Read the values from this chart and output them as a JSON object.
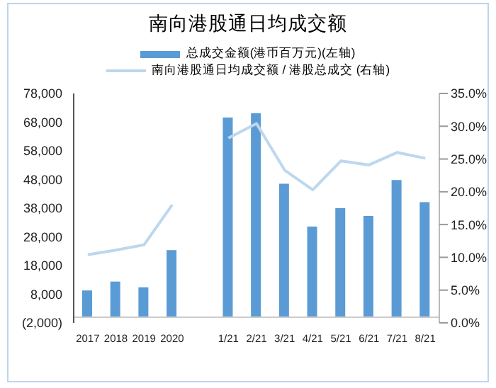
{
  "chart_data": {
    "type": "bar",
    "title": "南向港股通日均成交额",
    "categories": [
      "2017",
      "2018",
      "2019",
      "2020",
      null,
      "1/21",
      "2/21",
      "3/21",
      "4/21",
      "5/21",
      "6/21",
      "7/21",
      "8/21"
    ],
    "series": [
      {
        "name": "总成交金额(港币百万元)(左轴)",
        "color": "#5b9bd5",
        "values": [
          9300,
          12400,
          10400,
          23400,
          null,
          69600,
          71100,
          46500,
          31600,
          38000,
          35300,
          47800,
          40100
        ]
      },
      {
        "name": "南向港股通日均成交额 / 港股总成交 (右轴)",
        "type": "line",
        "axis": "y2",
        "color": "#bdd7ee",
        "values": [
          10.4,
          11.1,
          11.9,
          18.0,
          null,
          28.2,
          30.4,
          23.3,
          20.3,
          24.7,
          24.1,
          26.0,
          25.1
        ]
      }
    ],
    "ylim": [
      -2000,
      78000
    ],
    "yticks": [
      {
        "value": -2000,
        "label": "(2,000)"
      },
      {
        "value": 8000,
        "label": "8,000"
      },
      {
        "value": 18000,
        "label": "18,000"
      },
      {
        "value": 28000,
        "label": "28,000"
      },
      {
        "value": 38000,
        "label": "38,000"
      },
      {
        "value": 48000,
        "label": "48,000"
      },
      {
        "value": 58000,
        "label": "58,000"
      },
      {
        "value": 68000,
        "label": "68,000"
      },
      {
        "value": 78000,
        "label": "78,000"
      }
    ],
    "y2lim": [
      0,
      35
    ],
    "y2ticks": [
      {
        "value": 0,
        "label": "0.0%"
      },
      {
        "value": 5,
        "label": "5.0%"
      },
      {
        "value": 10,
        "label": "10.0%"
      },
      {
        "value": 15,
        "label": "15.0%"
      },
      {
        "value": 20,
        "label": "20.0%"
      },
      {
        "value": 25,
        "label": "25.0%"
      },
      {
        "value": 30,
        "label": "30.0%"
      },
      {
        "value": 35,
        "label": "35.0%"
      }
    ],
    "grid": false,
    "legend": "top",
    "marker": "none",
    "line_style": "solid"
  }
}
